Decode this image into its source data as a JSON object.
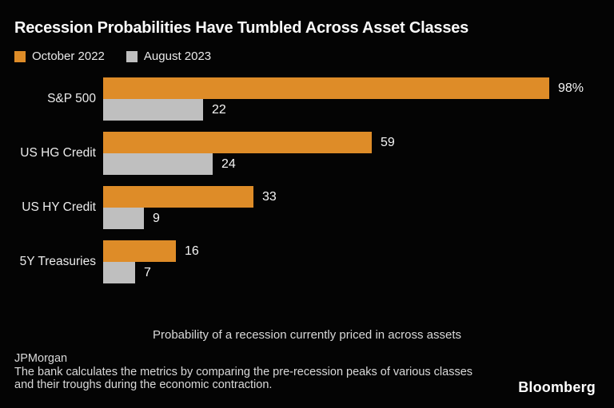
{
  "header": {
    "title": "Recession Probabilities Have Tumbled Across Asset Classes"
  },
  "legend": [
    {
      "label": "October 2022",
      "color": "#DE8C28"
    },
    {
      "label": "August 2023",
      "color": "#BFBFBF"
    }
  ],
  "chart_data": {
    "type": "bar",
    "orientation": "horizontal",
    "title": "Recession Probabilities Have Tumbled Across Asset Classes",
    "categories": [
      "S&P 500",
      "US HG Credit",
      "US HY Credit",
      "5Y Treasuries"
    ],
    "series": [
      {
        "name": "October 2022",
        "color": "#DE8C28",
        "values": [
          98,
          59,
          33,
          16
        ],
        "labels": [
          "98%",
          "59",
          "33",
          "16"
        ]
      },
      {
        "name": "August 2023",
        "color": "#BFBFBF",
        "values": [
          22,
          24,
          9,
          7
        ],
        "labels": [
          "22",
          "24",
          "9",
          "7"
        ]
      }
    ],
    "xlim": [
      0,
      100
    ],
    "grid": false,
    "legend_position": "top-left",
    "caption": "Probability of a recession currently priced in across assets"
  },
  "caption": "Probability of a recession currently priced in across assets",
  "footer": {
    "source": "JPMorgan",
    "note": "The bank calculates the metrics by comparing the pre-recession peaks of various classes and their troughs during the economic contraction.",
    "brand": "Bloomberg"
  },
  "colors": {
    "background": "#040404",
    "accent_orange": "#DE8C28",
    "accent_gray": "#BFBFBF",
    "title_text": "#FAFAFA",
    "muted_text": "#D9D9D9"
  }
}
